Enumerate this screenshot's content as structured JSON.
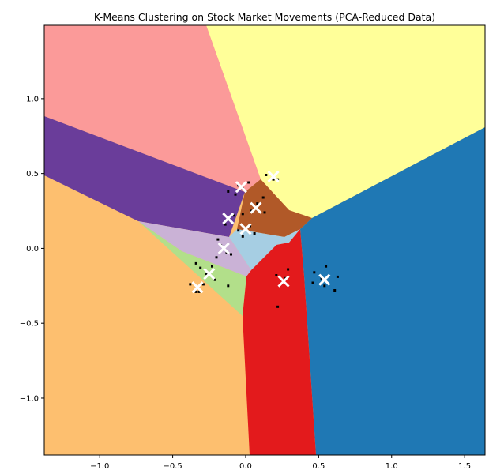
{
  "chart_data": {
    "type": "scatter",
    "title": "K-Means Clustering on Stock Market Movements (PCA-Reduced Data)",
    "xlabel": "",
    "ylabel": "",
    "xlim": [
      -1.38,
      1.64
    ],
    "ylim": [
      -1.38,
      1.49
    ],
    "x_ticks": [
      -1.0,
      -0.5,
      0.0,
      0.5,
      1.0,
      1.5
    ],
    "x_tick_labels": [
      "−1.0",
      "−0.5",
      "0.0",
      "0.5",
      "1.0",
      "1.5"
    ],
    "y_ticks": [
      -1.0,
      -0.5,
      0.0,
      0.5,
      1.0
    ],
    "y_tick_labels": [
      "−1.0",
      "−0.5",
      "0.0",
      "0.5",
      "1.0"
    ],
    "grid": false,
    "background": "decision regions (Paired colormap)",
    "region_colors": {
      "pink": "#fb9a99",
      "yellow": "#ffff99",
      "purple": "#6a3d9a",
      "lavender": "#cab2d6",
      "light_green": "#b2df8a",
      "orange": "#fdbf6f",
      "brown": "#b15928",
      "light_blue": "#a6cee3",
      "red": "#e31a1c",
      "blue": "#1f78b4"
    },
    "points_color": "#000000",
    "centroid_color": "#ffffff",
    "points": [
      [
        -0.12,
        0.38
      ],
      [
        -0.07,
        0.36
      ],
      [
        -0.05,
        0.42
      ],
      [
        -0.02,
        0.4
      ],
      [
        0.02,
        0.44
      ],
      [
        0.14,
        0.49
      ],
      [
        0.19,
        0.46
      ],
      [
        0.22,
        0.46
      ],
      [
        -0.02,
        0.23
      ],
      [
        0.04,
        0.25
      ],
      [
        0.08,
        0.3
      ],
      [
        0.13,
        0.24
      ],
      [
        0.12,
        0.34
      ],
      [
        -0.14,
        0.16
      ],
      [
        -0.12,
        0.2
      ],
      [
        -0.08,
        0.22
      ],
      [
        -0.05,
        0.12
      ],
      [
        -0.02,
        0.08
      ],
      [
        0.03,
        0.15
      ],
      [
        0.06,
        0.1
      ],
      [
        -0.2,
        -0.06
      ],
      [
        -0.17,
        0.02
      ],
      [
        -0.13,
        -0.03
      ],
      [
        -0.1,
        -0.04
      ],
      [
        -0.19,
        0.06
      ],
      [
        -0.34,
        -0.1
      ],
      [
        -0.31,
        -0.13
      ],
      [
        -0.27,
        -0.17
      ],
      [
        -0.23,
        -0.12
      ],
      [
        -0.21,
        -0.21
      ],
      [
        -0.12,
        -0.25
      ],
      [
        -0.38,
        -0.24
      ],
      [
        -0.34,
        -0.29
      ],
      [
        -0.32,
        -0.29
      ],
      [
        -0.29,
        -0.24
      ],
      [
        0.21,
        -0.18
      ],
      [
        0.27,
        -0.2
      ],
      [
        0.29,
        -0.14
      ],
      [
        0.22,
        -0.39
      ],
      [
        0.46,
        -0.23
      ],
      [
        0.47,
        -0.16
      ],
      [
        0.52,
        -0.2
      ],
      [
        0.55,
        -0.12
      ],
      [
        0.54,
        -0.25
      ],
      [
        0.61,
        -0.28
      ],
      [
        0.63,
        -0.19
      ]
    ],
    "centroids": [
      [
        -0.03,
        0.41
      ],
      [
        0.19,
        0.48
      ],
      [
        0.07,
        0.27
      ],
      [
        -0.12,
        0.2
      ],
      [
        0.0,
        0.13
      ],
      [
        -0.15,
        0.0
      ],
      [
        -0.25,
        -0.17
      ],
      [
        -0.33,
        -0.26
      ],
      [
        0.26,
        -0.22
      ],
      [
        0.54,
        -0.21
      ]
    ]
  }
}
